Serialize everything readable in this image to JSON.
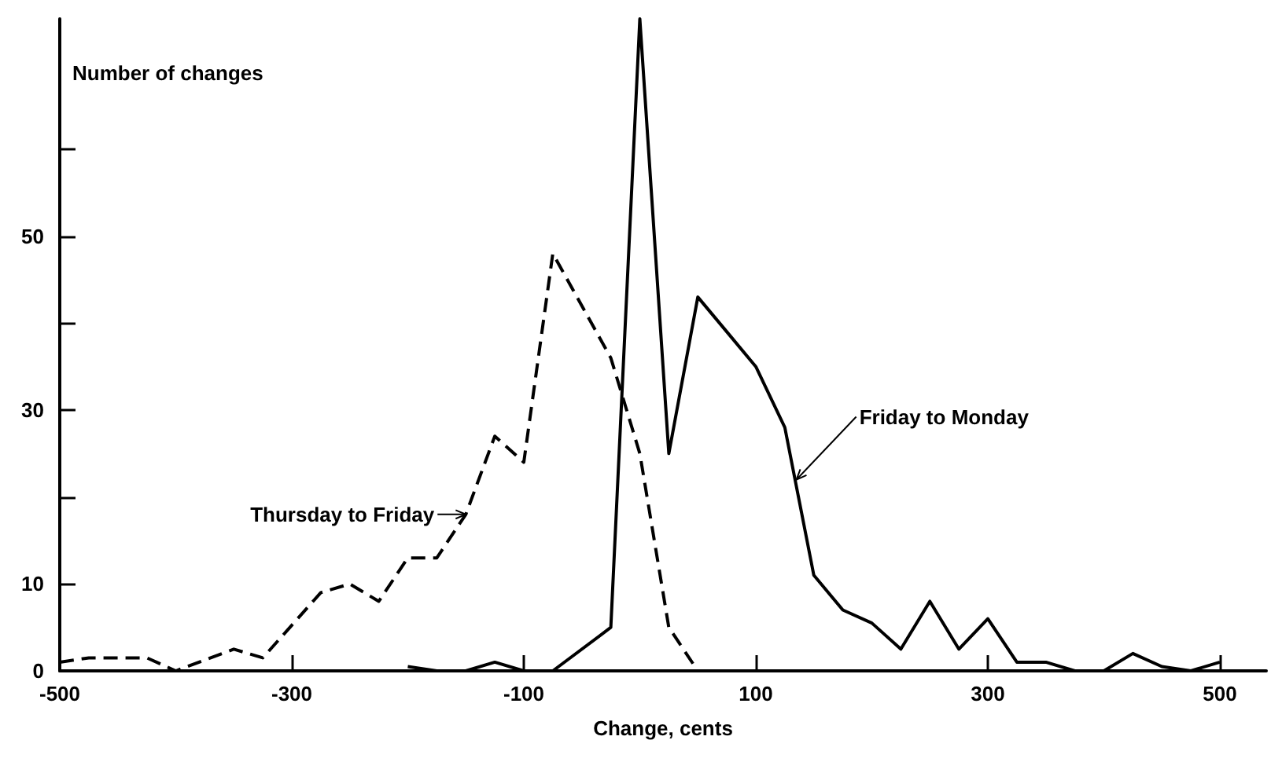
{
  "chart_data": {
    "type": "line",
    "xlabel": "Change, cents",
    "ylabel": "Number of changes",
    "xlim": [
      -500,
      540
    ],
    "xticks": [
      -500,
      -300,
      -100,
      100,
      300,
      500
    ],
    "ylim": [
      0,
      75
    ],
    "yticks": [
      0,
      10,
      {
        "value": 20,
        "label": null
      },
      30,
      {
        "value": 40,
        "label": null
      },
      50,
      {
        "value": 60,
        "label": null
      }
    ],
    "grid": false,
    "marker": "none",
    "series": [
      {
        "color": "#000000",
        "line_style": "dashed",
        "x": [
          -500,
          -475,
          -425,
          -400,
          -350,
          -325,
          -275,
          -250,
          -225,
          -200,
          -175,
          -150,
          -125,
          -100,
          -75,
          -25,
          0,
          25,
          50
        ],
        "values": [
          1,
          1.5,
          1.5,
          0,
          2.5,
          1.5,
          9,
          10,
          8,
          13,
          13,
          18,
          27,
          24,
          48,
          36,
          25,
          5,
          0
        ]
      },
      {
        "color": "#000000",
        "line_style": "solid",
        "x": [
          -200,
          -175,
          -150,
          -125,
          -100,
          -75,
          -25,
          0,
          25,
          50,
          75,
          100,
          125,
          150,
          175,
          200,
          225,
          250,
          275,
          300,
          325,
          350,
          375,
          400,
          425,
          450,
          475,
          500
        ],
        "values": [
          0.5,
          0,
          0,
          1,
          0,
          0,
          5,
          75,
          25,
          43,
          39,
          35,
          28,
          11,
          7,
          5.5,
          2.5,
          8,
          2.5,
          6,
          1,
          1,
          0,
          0,
          2,
          0.5,
          0,
          1
        ]
      }
    ],
    "annotations": [
      {
        "text": "Thursday to Friday",
        "x": -150,
        "y": 18
      },
      {
        "text": "Friday to Monday",
        "x": 135,
        "y": 22
      }
    ]
  }
}
